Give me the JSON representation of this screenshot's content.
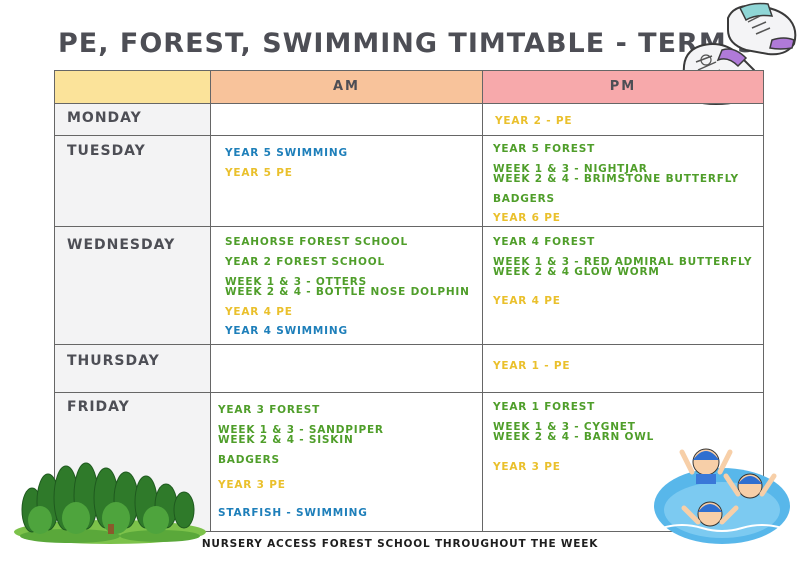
{
  "title": "PE, FOREST, SWIMMING TIMTABLE - TERM 5",
  "header": {
    "am": "AM",
    "pm": "PM"
  },
  "colors": {
    "header_corner": "#fbe39a",
    "header_am": "#f8c39b",
    "header_pm": "#f7a9ab",
    "day_column": "#f3f3f4",
    "forest_green": "#4f9e2a",
    "pe_yellow": "#eac02c",
    "swimming_blue": "#1e7fba"
  },
  "days": {
    "monday": {
      "label": "MONDAY",
      "am": [],
      "pm": [
        "YEAR 2 - PE"
      ]
    },
    "tuesday": {
      "label": "TUESDAY",
      "am": [
        "YEAR 5 SWIMMING",
        "YEAR 5 PE"
      ],
      "pm": [
        "YEAR 5 FOREST",
        "WEEK 1 & 3 - NIGHTJAR",
        "WEEK 2 & 4 - BRIMSTONE BUTTERFLY",
        "BADGERS",
        "YEAR 6 PE"
      ]
    },
    "wednesday": {
      "label": "WEDNESDAY",
      "am": [
        "SEAHORSE FOREST SCHOOL",
        "YEAR 2 FOREST SCHOOL",
        "WEEK 1 & 3 - OTTERS",
        "WEEK 2 & 4 - BOTTLE NOSE DOLPHIN",
        "YEAR 4 PE",
        "YEAR 4 SWIMMING"
      ],
      "pm": [
        "YEAR 4 FOREST",
        "WEEK 1 & 3 - RED ADMIRAL BUTTERFLY",
        "WEEK 2 & 4 GLOW WORM",
        "YEAR 4 PE"
      ]
    },
    "thursday": {
      "label": "THURSDAY",
      "am": [],
      "pm": [
        "YEAR 1 - PE"
      ]
    },
    "friday": {
      "label": "FRIDAY",
      "am": [
        "YEAR 3 FOREST",
        "WEEK 1 & 3 - SANDPIPER",
        "WEEK 2 & 4 - SISKIN",
        "BADGERS",
        "YEAR 3 PE",
        "STARFISH - SWIMMING"
      ],
      "pm": [
        "YEAR 1 FOREST",
        "WEEK 1 & 3 - CYGNET",
        "WEEK 2 & 4 - BARN OWL",
        "YEAR 3 PE"
      ]
    }
  },
  "footer": "NURSERY ACCESS FOREST SCHOOL THROUGHOUT THE WEEK",
  "icons": [
    "trainers-icon",
    "forest-trees-icon",
    "swimming-children-icon"
  ]
}
